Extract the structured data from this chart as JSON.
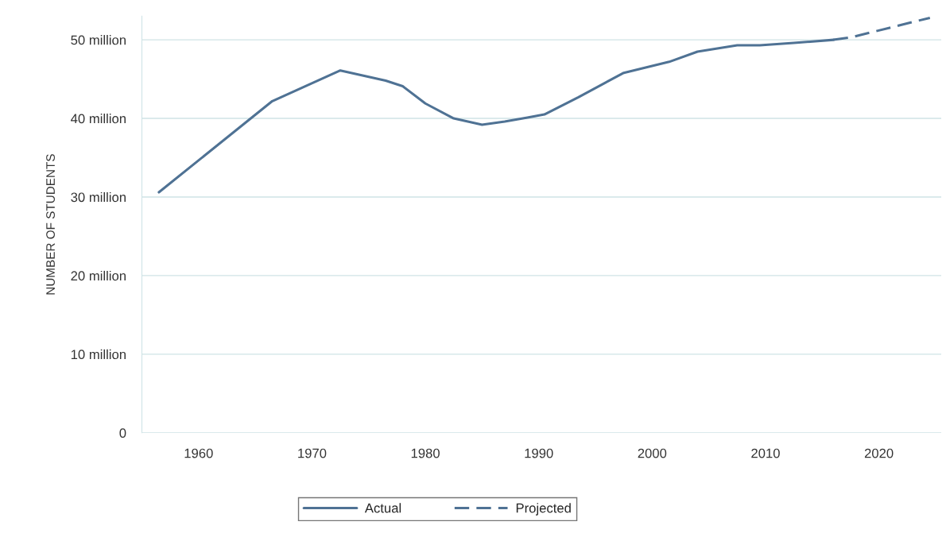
{
  "chart_data": {
    "type": "line",
    "ylabel": "NUMBER OF STUDENTS",
    "xlim": [
      1955,
      2025.5
    ],
    "xticks": [
      1960,
      1970,
      1980,
      1990,
      2000,
      2010,
      2020
    ],
    "ylim": [
      0,
      53
    ],
    "yticks": [
      0,
      {
        "value": 10,
        "label": "10 million"
      },
      {
        "value": 20,
        "label": "20 million"
      },
      {
        "value": 30,
        "label": "30 million"
      },
      {
        "value": 40,
        "label": "40 million"
      },
      {
        "value": 50,
        "label": "50 million"
      }
    ],
    "grid": "y",
    "legend": "bottom",
    "series": [
      {
        "name": "Actual",
        "color": "#4f7294",
        "line_style": "solid",
        "x": [
          1956.5,
          1966.5,
          1972.5,
          1976.5,
          1978,
          1980,
          1982.5,
          1985,
          1987,
          1989,
          1990.5,
          1993.5,
          1997.5,
          2001.5,
          2004,
          2007.5,
          2009.5,
          2012.5,
          2016
        ],
        "values": [
          30.6,
          42.2,
          46.1,
          44.8,
          44.1,
          41.9,
          40.0,
          39.2,
          39.6,
          40.1,
          40.5,
          42.7,
          45.8,
          47.2,
          48.5,
          49.3,
          49.3,
          49.6,
          50.0
        ]
      },
      {
        "name": "Projected",
        "color": "#4f7294",
        "line_style": "dashed",
        "x": [
          2016,
          2017.5,
          2024.5
        ],
        "values": [
          50.0,
          50.3,
          52.8
        ]
      }
    ]
  }
}
